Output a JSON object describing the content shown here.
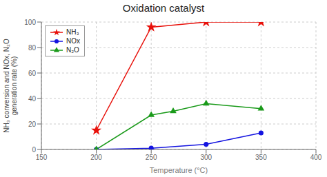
{
  "chart_data": {
    "type": "line",
    "title": "Oxidation catalyst",
    "x_label": "Temperature (°C)",
    "y_label": "NH₃ conversion and NOx, N₂O\ngeneration rate (%)",
    "xlim": [
      150,
      400
    ],
    "ylim": [
      0,
      100
    ],
    "xticks": [
      150,
      200,
      250,
      300,
      350,
      400
    ],
    "yticks": [
      0,
      20,
      40,
      60,
      80,
      100
    ],
    "grid": true,
    "legend": "upper left",
    "series": [
      {
        "name": "NH₃",
        "color": "#e8100a",
        "marker": "star",
        "x": [
          200,
          250,
          300,
          350
        ],
        "values": [
          15,
          96,
          100,
          100
        ]
      },
      {
        "name": "NOx",
        "color": "#1414e0",
        "marker": "circle",
        "x": [
          200,
          250,
          300,
          350
        ],
        "values": [
          0,
          1,
          4,
          13
        ]
      },
      {
        "name": "N₂O",
        "color": "#1a9a1a",
        "marker": "triangle",
        "x": [
          200,
          250,
          270,
          300,
          350
        ],
        "values": [
          0,
          27,
          30,
          36,
          32
        ]
      }
    ]
  }
}
